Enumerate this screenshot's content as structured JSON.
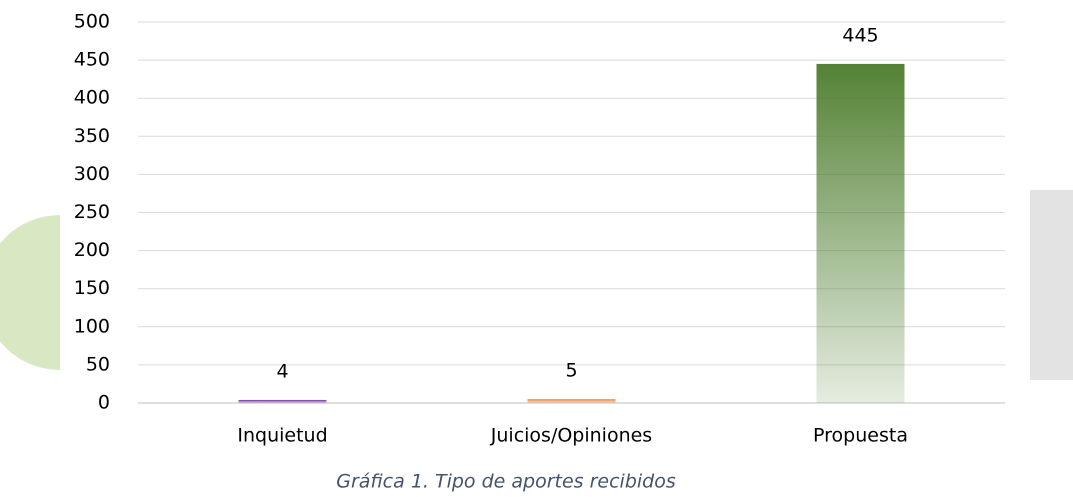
{
  "chart_data": {
    "type": "bar",
    "caption": "Gráfica 1. Tipo de aportes recibidos",
    "categories": [
      "Inquietud",
      "Juicios/Opiniones",
      "Propuesta"
    ],
    "values": [
      4,
      5,
      445
    ],
    "colors": [
      "#7030a0",
      "#ed7d31",
      "#548235"
    ],
    "ylim": [
      0,
      500
    ],
    "yticks": [
      0,
      50,
      100,
      150,
      200,
      250,
      300,
      350,
      400,
      450,
      500
    ],
    "grid": true,
    "data_labels": true
  }
}
